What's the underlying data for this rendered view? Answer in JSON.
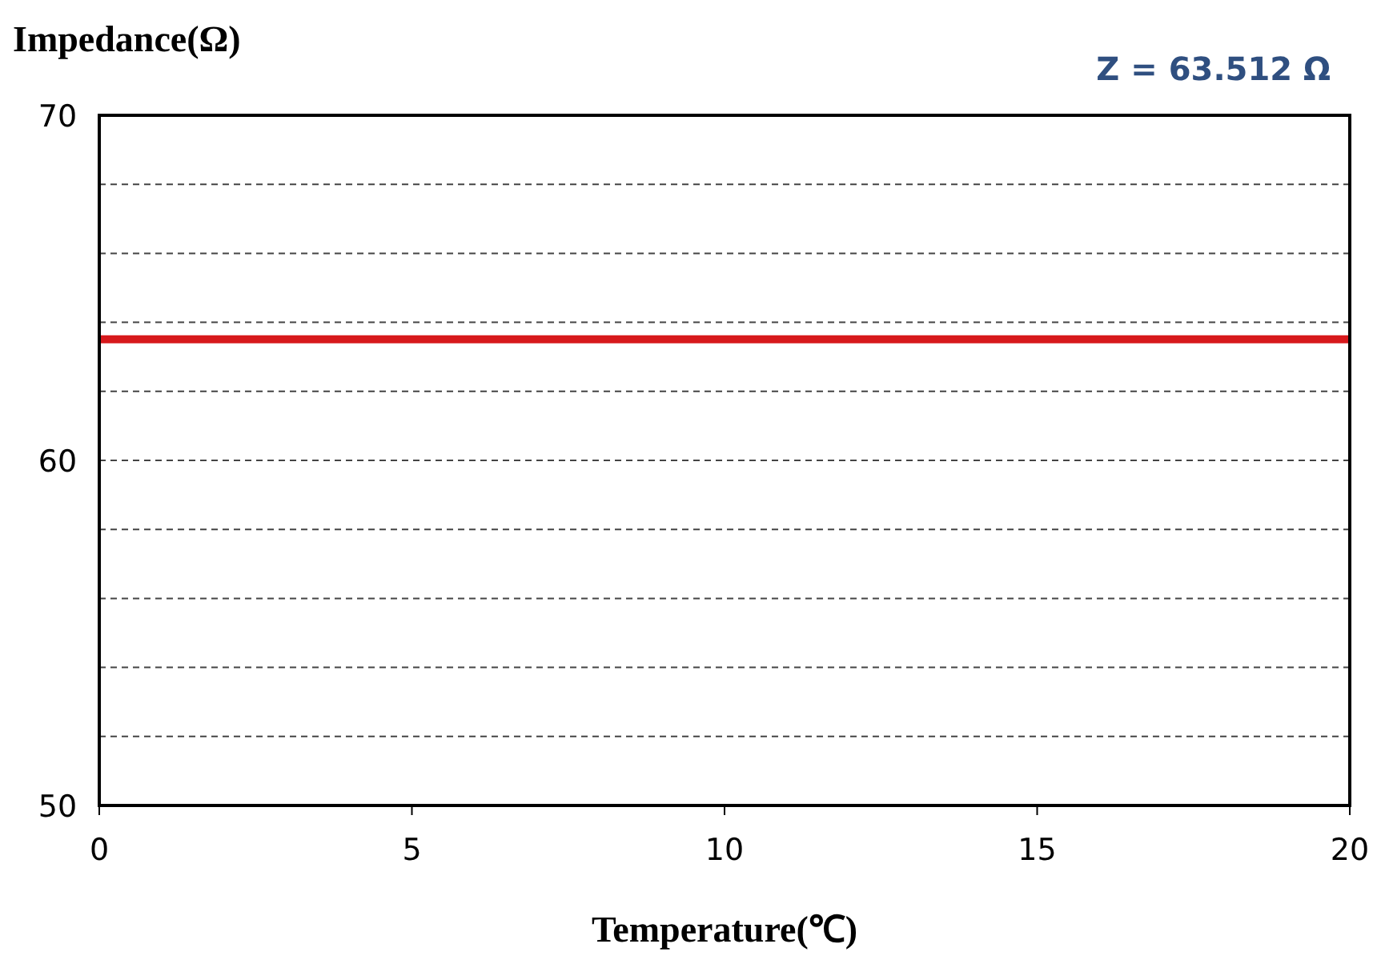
{
  "chart_data": {
    "type": "line",
    "xlabel": "Temperature(℃)",
    "ylabel": "Impedance(Ω)",
    "annotations": [
      "Z = 63.512 Ω"
    ],
    "x": [
      0,
      20
    ],
    "series": [
      {
        "color": "#d7191c",
        "values": [
          63.512,
          63.512
        ]
      }
    ],
    "xlim": [
      0,
      20
    ],
    "xticks": [
      0,
      5,
      10,
      15,
      20
    ],
    "ylim": [
      50,
      70
    ],
    "yticks": [
      50,
      {
        "value": 52,
        "label": null
      },
      {
        "value": 54,
        "label": null
      },
      {
        "value": 56,
        "label": null
      },
      {
        "value": 58,
        "label": null
      },
      60,
      {
        "value": 62,
        "label": null
      },
      {
        "value": 64,
        "label": null
      },
      {
        "value": 66,
        "label": null
      },
      {
        "value": 68,
        "label": null
      },
      70
    ],
    "grid": "y",
    "marker": "none",
    "line_style": "solid"
  }
}
